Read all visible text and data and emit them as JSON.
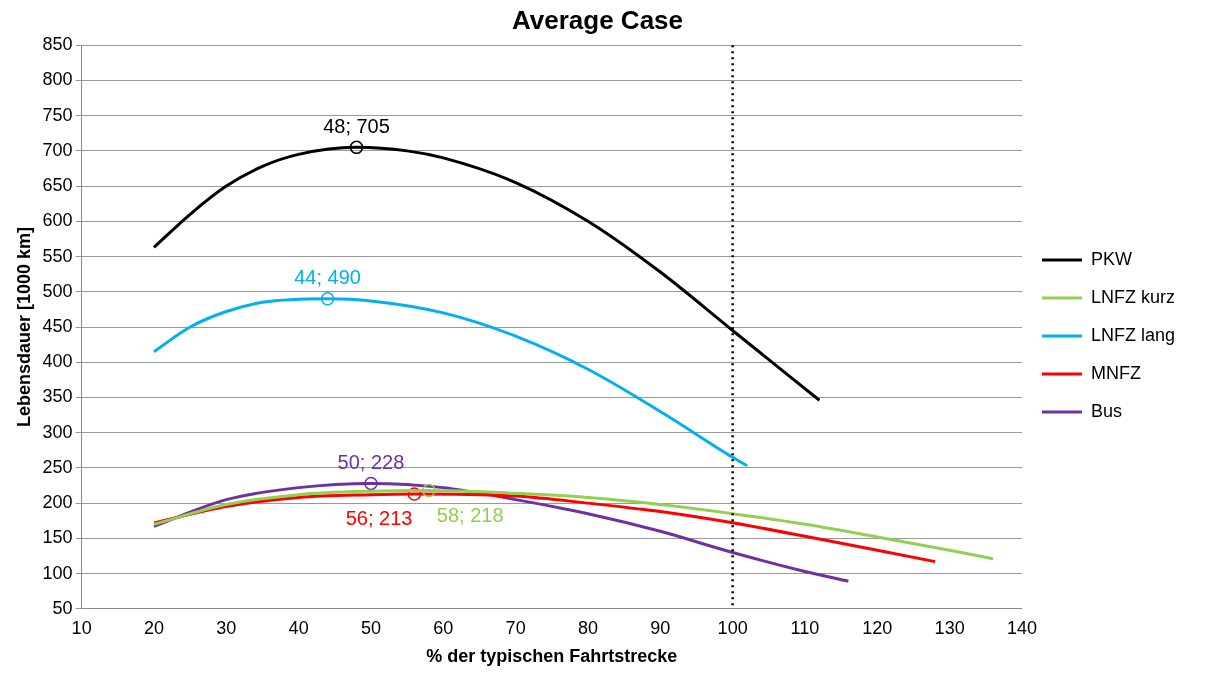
{
  "chart_data": {
    "type": "line",
    "title": "Average Case",
    "xlabel": "% der typischen Fahrtstrecke",
    "ylabel": "Lebensdauer [1000 km]",
    "xlim": [
      10,
      140
    ],
    "xticks": [
      10,
      20,
      30,
      40,
      50,
      60,
      70,
      80,
      90,
      100,
      110,
      120,
      130,
      140
    ],
    "ylim": [
      50,
      850
    ],
    "yticks": [
      50,
      100,
      150,
      200,
      250,
      300,
      350,
      400,
      450,
      500,
      550,
      600,
      650,
      700,
      750,
      800,
      850
    ],
    "grid": "y",
    "legend": "right",
    "marker": "none",
    "line_style": "solid",
    "series": [
      {
        "name": "PKW",
        "color": "#000000",
        "x": [
          20,
          25,
          30,
          35,
          40,
          48,
          55,
          60,
          70,
          80,
          90,
          100,
          112
        ],
        "values": [
          563,
          610,
          650,
          678,
          695,
          705,
          700,
          690,
          655,
          600,
          528,
          445,
          346
        ]
      },
      {
        "name": "LNFZ kurz",
        "color": "#92d050",
        "x": [
          20,
          30,
          40,
          50,
          58,
          70,
          80,
          90,
          100,
          110,
          120,
          130,
          136
        ],
        "values": [
          170,
          198,
          212,
          217,
          218,
          214,
          208,
          198,
          185,
          170,
          152,
          133,
          121
        ]
      },
      {
        "name": "LNFZ lang",
        "color": "#00b0f0",
        "x": [
          20,
          25,
          30,
          35,
          44,
          50,
          60,
          70,
          80,
          90,
          100,
          102
        ],
        "values": [
          415,
          450,
          472,
          485,
          490,
          487,
          470,
          437,
          390,
          330,
          265,
          253
        ]
      },
      {
        "name": "MNFZ",
        "color": "#ff0000",
        "x": [
          20,
          30,
          40,
          50,
          56,
          70,
          80,
          90,
          100,
          110,
          120,
          128
        ],
        "values": [
          172,
          195,
          208,
          212,
          213,
          210,
          200,
          188,
          172,
          153,
          133,
          117
        ]
      },
      {
        "name": "Bus",
        "color": "#7030a0",
        "x": [
          20,
          30,
          40,
          50,
          60,
          70,
          80,
          90,
          100,
          110,
          116
        ],
        "values": [
          167,
          205,
          222,
          228,
          222,
          205,
          185,
          160,
          130,
          103,
          89
        ]
      }
    ],
    "ref_lines": [
      {
        "axis": "x",
        "value": 100,
        "color": "#000000",
        "line_style": "dotted"
      }
    ],
    "annotations": [
      {
        "text": "48; 705",
        "x": 48,
        "y": 705
      },
      {
        "text": "44; 490",
        "x": 44,
        "y": 490
      },
      {
        "text": "50; 228",
        "x": 50,
        "y": 228
      },
      {
        "text": "56; 213",
        "x": 56,
        "y": 213
      },
      {
        "text": "58; 218",
        "x": 58,
        "y": 218
      }
    ]
  }
}
